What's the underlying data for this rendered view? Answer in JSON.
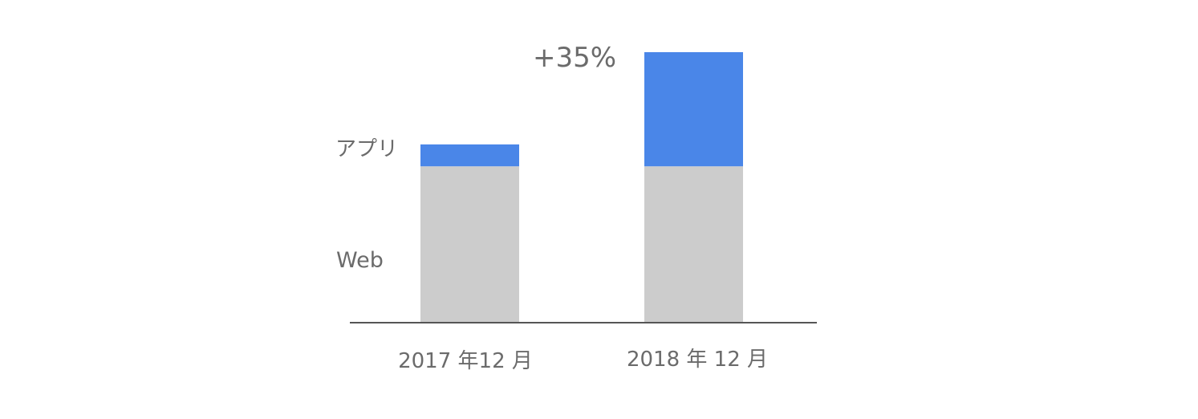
{
  "chart_data": {
    "type": "bar",
    "stacked": true,
    "categories": [
      "2017 年12 月",
      "2018 年 12 月"
    ],
    "series": [
      {
        "name": "Web",
        "values": [
          100,
          100
        ],
        "color": "#cccccc"
      },
      {
        "name": "アプリ",
        "values": [
          14,
          73
        ],
        "color": "#4a86e8"
      }
    ],
    "annotations": [
      {
        "text": "+35%",
        "category_index": 1
      }
    ],
    "title": "",
    "xlabel": "",
    "ylabel": "",
    "ylim": [
      0,
      173
    ],
    "grid": false,
    "legend": "series labels placed left of first bar",
    "axis_color": "#555555",
    "text_color": "#6b6b6b"
  }
}
